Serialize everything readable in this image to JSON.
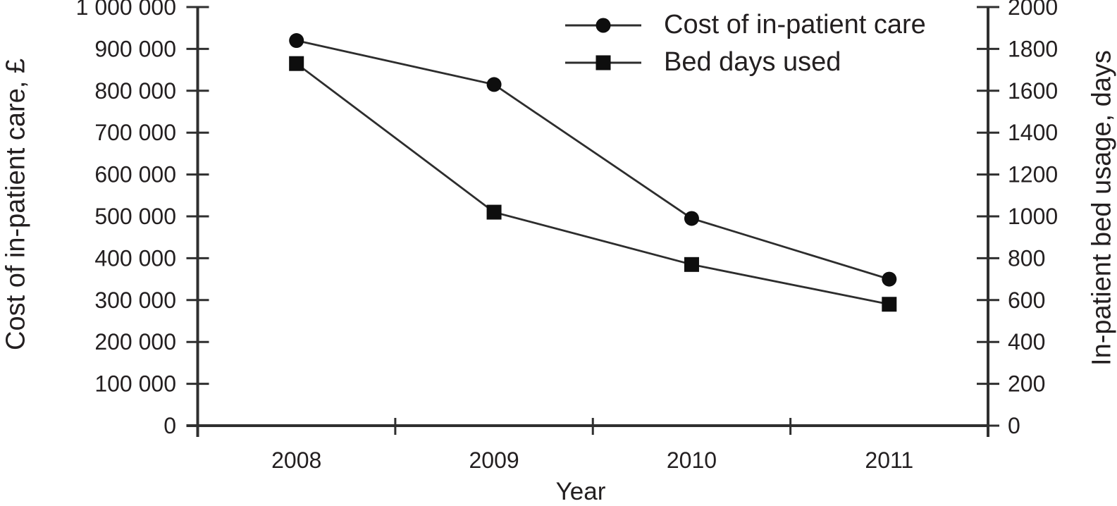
{
  "chart_data": {
    "type": "line",
    "title": "",
    "x": [
      "2008",
      "2009",
      "2010",
      "2011"
    ],
    "xlabel": "Year",
    "series": [
      {
        "name": "Cost of in-patient care",
        "axis": "left",
        "marker": "circle",
        "values": [
          920000,
          815000,
          495000,
          350000
        ]
      },
      {
        "name": "Bed days used",
        "axis": "right",
        "marker": "square",
        "values": [
          1730,
          1020,
          770,
          580
        ]
      }
    ],
    "left_axis": {
      "label": "Cost of in-patient care, £",
      "min": 0,
      "max": 1000000,
      "tick_step": 100000,
      "tick_labels": [
        "0",
        "100 000",
        "200 000",
        "300 000",
        "400 000",
        "500 000",
        "600 000",
        "700 000",
        "800 000",
        "900 000",
        "1 000 000"
      ]
    },
    "right_axis": {
      "label": "In-patient bed usage, days",
      "min": 0,
      "max": 2000,
      "tick_step": 200,
      "tick_labels": [
        "0",
        "200",
        "400",
        "600",
        "800",
        "1000",
        "1200",
        "1400",
        "1600",
        "1800",
        "2000"
      ]
    },
    "legend_position": "top-center",
    "grid": false,
    "colors": {
      "axis": "#2f2f2f",
      "line": "#2d2d2d",
      "marker": "#0e0e0e",
      "text": "#231f20"
    }
  }
}
